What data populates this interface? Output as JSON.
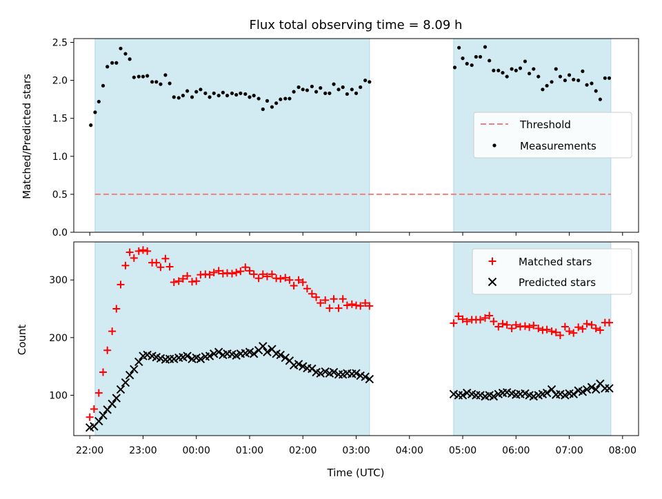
{
  "figure": {
    "title": "Flux total observing time = 8.09 h",
    "xlabel": "Time (UTC)",
    "x_ticks": [
      "22:00",
      "23:00",
      "00:00",
      "01:00",
      "02:00",
      "03:00",
      "04:00",
      "05:00",
      "06:00",
      "07:00",
      "08:00"
    ]
  },
  "chart_data": [
    {
      "type": "scatter",
      "panel": "top",
      "ylabel": "Matched/Predicted stars",
      "ylim": [
        0,
        2.55
      ],
      "y_ticks": [
        "0.0",
        "0.5",
        "1.0",
        "1.5",
        "2.0",
        "2.5"
      ],
      "x_units": "hours since 22:00 UTC",
      "xlim": [
        -0.3,
        10.3
      ],
      "shaded_intervals": [
        [
          0.1,
          5.25
        ],
        [
          6.83,
          9.78
        ]
      ],
      "shade_color": "#add8e6",
      "legend_placement": "center-right",
      "series": [
        {
          "name": "Threshold",
          "kind": "dashed-line",
          "color": "#f08080",
          "y": 0.5,
          "x_range": [
            0.1,
            9.78
          ]
        },
        {
          "name": "Measurements",
          "kind": "points",
          "color": "#000000",
          "x": [
            0.02,
            0.1,
            0.17,
            0.25,
            0.33,
            0.42,
            0.5,
            0.58,
            0.67,
            0.75,
            0.83,
            0.92,
            1.0,
            1.08,
            1.17,
            1.25,
            1.33,
            1.42,
            1.5,
            1.58,
            1.67,
            1.75,
            1.83,
            1.92,
            2.0,
            2.08,
            2.17,
            2.25,
            2.33,
            2.42,
            2.5,
            2.58,
            2.67,
            2.75,
            2.83,
            2.92,
            3.0,
            3.08,
            3.17,
            3.25,
            3.33,
            3.42,
            3.5,
            3.58,
            3.67,
            3.75,
            3.83,
            3.92,
            4.0,
            4.08,
            4.17,
            4.25,
            4.33,
            4.42,
            4.5,
            4.58,
            4.67,
            4.75,
            4.83,
            4.92,
            5.0,
            5.08,
            5.17,
            5.25,
            6.85,
            6.93,
            7.0,
            7.08,
            7.17,
            7.25,
            7.33,
            7.42,
            7.5,
            7.58,
            7.67,
            7.75,
            7.83,
            7.92,
            8.0,
            8.08,
            8.17,
            8.25,
            8.33,
            8.42,
            8.5,
            8.58,
            8.67,
            8.75,
            8.83,
            8.92,
            9.0,
            9.08,
            9.17,
            9.25,
            9.33,
            9.42,
            9.5,
            9.58,
            9.67,
            9.75
          ],
          "y": [
            1.41,
            1.58,
            1.72,
            1.93,
            2.18,
            2.23,
            2.23,
            2.42,
            2.35,
            2.28,
            2.04,
            2.05,
            2.05,
            2.06,
            1.98,
            1.98,
            1.95,
            2.07,
            1.96,
            1.78,
            1.77,
            1.8,
            1.86,
            1.78,
            1.85,
            1.88,
            1.83,
            1.78,
            1.83,
            1.8,
            1.84,
            1.8,
            1.83,
            1.81,
            1.83,
            1.82,
            1.78,
            1.8,
            1.76,
            1.62,
            1.73,
            1.65,
            1.7,
            1.75,
            1.76,
            1.76,
            1.85,
            1.91,
            1.88,
            1.87,
            1.92,
            1.85,
            1.9,
            1.83,
            1.83,
            1.95,
            1.88,
            1.91,
            1.82,
            1.88,
            1.83,
            1.91,
            2.0,
            1.98,
            2.17,
            2.43,
            2.29,
            2.22,
            2.2,
            2.31,
            2.31,
            2.44,
            2.26,
            2.13,
            2.13,
            2.1,
            2.05,
            2.15,
            2.13,
            2.16,
            2.25,
            2.09,
            2.15,
            2.05,
            1.88,
            1.93,
            1.98,
            2.15,
            2.05,
            2.0,
            2.07,
            2.01,
            2.0,
            2.12,
            1.94,
            1.96,
            1.86,
            1.75,
            2.03,
            2.03
          ]
        }
      ]
    },
    {
      "type": "scatter",
      "panel": "bottom",
      "ylabel": "Count",
      "ylim": [
        30,
        366
      ],
      "y_ticks": [
        "100",
        "200",
        "300"
      ],
      "x_units": "hours since 22:00 UTC",
      "xlim": [
        -0.3,
        10.3
      ],
      "shaded_intervals": [
        [
          0.1,
          5.25
        ],
        [
          6.83,
          9.78
        ]
      ],
      "shade_color": "#add8e6",
      "legend_placement": "top-right",
      "series": [
        {
          "name": "Matched stars",
          "marker": "plus",
          "color": "#ff0000",
          "x": [
            0.0,
            0.08,
            0.17,
            0.25,
            0.33,
            0.42,
            0.5,
            0.58,
            0.67,
            0.75,
            0.83,
            0.92,
            1.0,
            1.08,
            1.17,
            1.25,
            1.33,
            1.42,
            1.5,
            1.58,
            1.67,
            1.75,
            1.83,
            1.92,
            2.0,
            2.08,
            2.17,
            2.25,
            2.33,
            2.42,
            2.5,
            2.58,
            2.67,
            2.75,
            2.83,
            2.92,
            3.0,
            3.08,
            3.17,
            3.25,
            3.33,
            3.42,
            3.5,
            3.58,
            3.67,
            3.75,
            3.83,
            3.92,
            4.0,
            4.08,
            4.17,
            4.25,
            4.33,
            4.42,
            4.5,
            4.58,
            4.67,
            4.75,
            4.83,
            4.92,
            5.0,
            5.08,
            5.17,
            5.25,
            6.83,
            6.92,
            7.0,
            7.08,
            7.17,
            7.25,
            7.33,
            7.42,
            7.5,
            7.58,
            7.67,
            7.75,
            7.83,
            7.92,
            8.0,
            8.08,
            8.17,
            8.25,
            8.33,
            8.42,
            8.5,
            8.58,
            8.67,
            8.75,
            8.83,
            8.92,
            9.0,
            9.08,
            9.17,
            9.25,
            9.33,
            9.42,
            9.5,
            9.58,
            9.67,
            9.75
          ],
          "y": [
            62,
            76,
            104,
            140,
            178,
            211,
            250,
            292,
            325,
            348,
            338,
            350,
            352,
            350,
            330,
            330,
            322,
            337,
            323,
            296,
            298,
            302,
            307,
            297,
            298,
            309,
            310,
            309,
            313,
            316,
            311,
            312,
            311,
            313,
            315,
            322,
            316,
            310,
            303,
            310,
            306,
            310,
            303,
            302,
            304,
            300,
            290,
            300,
            296,
            285,
            276,
            270,
            260,
            265,
            251,
            267,
            251,
            267,
            256,
            258,
            256,
            255,
            260,
            255,
            225,
            237,
            232,
            228,
            231,
            231,
            231,
            234,
            238,
            228,
            219,
            224,
            222,
            216,
            222,
            219,
            220,
            218,
            221,
            216,
            213,
            214,
            211,
            209,
            204,
            219,
            211,
            208,
            218,
            215,
            224,
            222,
            216,
            213,
            226,
            226
          ]
        },
        {
          "name": "Predicted stars",
          "marker": "x",
          "color": "#000000",
          "x": [
            0.0,
            0.08,
            0.17,
            0.25,
            0.33,
            0.42,
            0.5,
            0.58,
            0.67,
            0.75,
            0.83,
            0.92,
            1.0,
            1.08,
            1.17,
            1.25,
            1.33,
            1.42,
            1.5,
            1.58,
            1.67,
            1.75,
            1.83,
            1.92,
            2.0,
            2.08,
            2.17,
            2.25,
            2.33,
            2.42,
            2.5,
            2.58,
            2.67,
            2.75,
            2.83,
            2.92,
            3.0,
            3.08,
            3.17,
            3.25,
            3.33,
            3.42,
            3.5,
            3.58,
            3.67,
            3.75,
            3.83,
            3.92,
            4.0,
            4.08,
            4.17,
            4.25,
            4.33,
            4.42,
            4.5,
            4.58,
            4.67,
            4.75,
            4.83,
            4.92,
            5.0,
            5.08,
            5.17,
            5.25,
            6.83,
            6.92,
            7.0,
            7.08,
            7.17,
            7.25,
            7.33,
            7.42,
            7.5,
            7.58,
            7.67,
            7.75,
            7.83,
            7.92,
            8.0,
            8.08,
            8.17,
            8.25,
            8.33,
            8.42,
            8.5,
            8.58,
            8.67,
            8.75,
            8.83,
            8.92,
            9.0,
            9.08,
            9.17,
            9.25,
            9.33,
            9.42,
            9.5,
            9.58,
            9.67,
            9.75
          ],
          "y": [
            44,
            46,
            55,
            65,
            75,
            85,
            95,
            110,
            122,
            135,
            145,
            158,
            168,
            170,
            168,
            166,
            164,
            162,
            163,
            163,
            165,
            166,
            168,
            163,
            165,
            163,
            167,
            168,
            172,
            175,
            170,
            172,
            171,
            169,
            172,
            173,
            175,
            172,
            178,
            185,
            175,
            180,
            172,
            170,
            165,
            160,
            152,
            154,
            150,
            147,
            146,
            140,
            138,
            141,
            138,
            140,
            136,
            136,
            138,
            137,
            138,
            134,
            132,
            128,
            102,
            100,
            100,
            104,
            102,
            100,
            100,
            98,
            100,
            98,
            102,
            104,
            105,
            103,
            101,
            102,
            103,
            100,
            98,
            100,
            102,
            104,
            110,
            101,
            102,
            100,
            103,
            102,
            108,
            106,
            110,
            114,
            110,
            120,
            112,
            112
          ]
        }
      ]
    }
  ]
}
